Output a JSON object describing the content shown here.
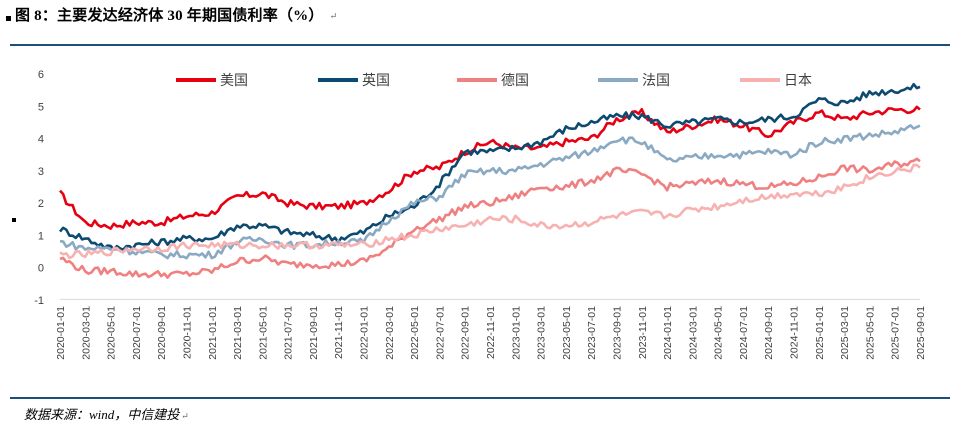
{
  "title": "图 8：主要发达经济体 30 年期国债利率（%）",
  "return_mark": "↵",
  "source": "数据来源：wind，中信建投",
  "chart_data": {
    "type": "line",
    "title": "图 8：主要发达经济体 30 年期国债利率（%）",
    "xlabel": "",
    "ylabel": "%",
    "ylim": [
      -1,
      6
    ],
    "yticks": [
      -1,
      0,
      1,
      2,
      3,
      4,
      5,
      6
    ],
    "categories": [
      "2020-01-01",
      "2020-03-01",
      "2020-05-01",
      "2020-07-01",
      "2020-09-01",
      "2020-11-01",
      "2021-01-01",
      "2021-03-01",
      "2021-05-01",
      "2021-07-01",
      "2021-09-01",
      "2021-11-01",
      "2022-01-01",
      "2022-03-01",
      "2022-05-01",
      "2022-07-01",
      "2022-09-01",
      "2022-11-01",
      "2023-01-01",
      "2023-03-01",
      "2023-05-01",
      "2023-07-01",
      "2023-09-01",
      "2023-11-01",
      "2024-01-01",
      "2024-03-01",
      "2024-05-01",
      "2024-07-01",
      "2024-09-01",
      "2024-11-01",
      "2025-01-01",
      "2025-03-01",
      "2025-05-01",
      "2025-07-01",
      "2025-09-01"
    ],
    "legend": "top",
    "series": [
      {
        "name": "美国",
        "color": "#e60012",
        "values": [
          2.3,
          1.4,
          1.3,
          1.4,
          1.4,
          1.6,
          1.7,
          2.2,
          2.3,
          2.0,
          1.9,
          1.9,
          2.0,
          2.4,
          3.0,
          3.1,
          3.6,
          3.9,
          3.7,
          3.7,
          3.9,
          4.0,
          4.6,
          4.8,
          4.2,
          4.4,
          4.6,
          4.4,
          4.1,
          4.5,
          4.8,
          4.6,
          4.8,
          4.9,
          4.9
        ]
      },
      {
        "name": "英国",
        "color": "#0d4a70",
        "values": [
          1.2,
          0.9,
          0.6,
          0.7,
          0.8,
          0.9,
          0.9,
          1.3,
          1.3,
          1.1,
          1.0,
          0.9,
          1.1,
          1.6,
          1.9,
          2.6,
          3.6,
          3.6,
          3.7,
          3.9,
          4.3,
          4.5,
          4.7,
          4.7,
          4.4,
          4.5,
          4.6,
          4.5,
          4.6,
          4.7,
          5.2,
          5.1,
          5.4,
          5.5,
          5.6
        ]
      },
      {
        "name": "德国",
        "color": "#f08080",
        "values": [
          0.3,
          -0.1,
          -0.1,
          -0.2,
          -0.2,
          -0.2,
          -0.1,
          0.2,
          0.3,
          0.1,
          0.1,
          0.1,
          0.2,
          0.6,
          1.2,
          1.5,
          1.9,
          2.0,
          2.2,
          2.5,
          2.5,
          2.7,
          3.0,
          2.9,
          2.5,
          2.6,
          2.7,
          2.6,
          2.5,
          2.6,
          2.8,
          3.1,
          3.0,
          3.2,
          3.3
        ]
      },
      {
        "name": "法国",
        "color": "#8aa9c2",
        "values": [
          0.8,
          0.6,
          0.6,
          0.5,
          0.4,
          0.4,
          0.4,
          0.8,
          0.9,
          0.7,
          0.7,
          0.8,
          0.8,
          1.5,
          2.0,
          2.2,
          2.9,
          3.0,
          3.0,
          3.2,
          3.4,
          3.6,
          4.0,
          3.9,
          3.3,
          3.4,
          3.5,
          3.5,
          3.6,
          3.5,
          3.9,
          4.0,
          4.1,
          4.2,
          4.4
        ]
      },
      {
        "name": "日本",
        "color": "#f7b1b1",
        "values": [
          0.4,
          0.4,
          0.5,
          0.6,
          0.6,
          0.7,
          0.7,
          0.7,
          0.7,
          0.7,
          0.7,
          0.7,
          0.7,
          0.9,
          1.0,
          1.2,
          1.3,
          1.5,
          1.5,
          1.3,
          1.3,
          1.4,
          1.6,
          1.7,
          1.6,
          1.8,
          1.9,
          2.1,
          2.2,
          2.3,
          2.3,
          2.5,
          2.8,
          3.0,
          3.1
        ]
      }
    ]
  }
}
